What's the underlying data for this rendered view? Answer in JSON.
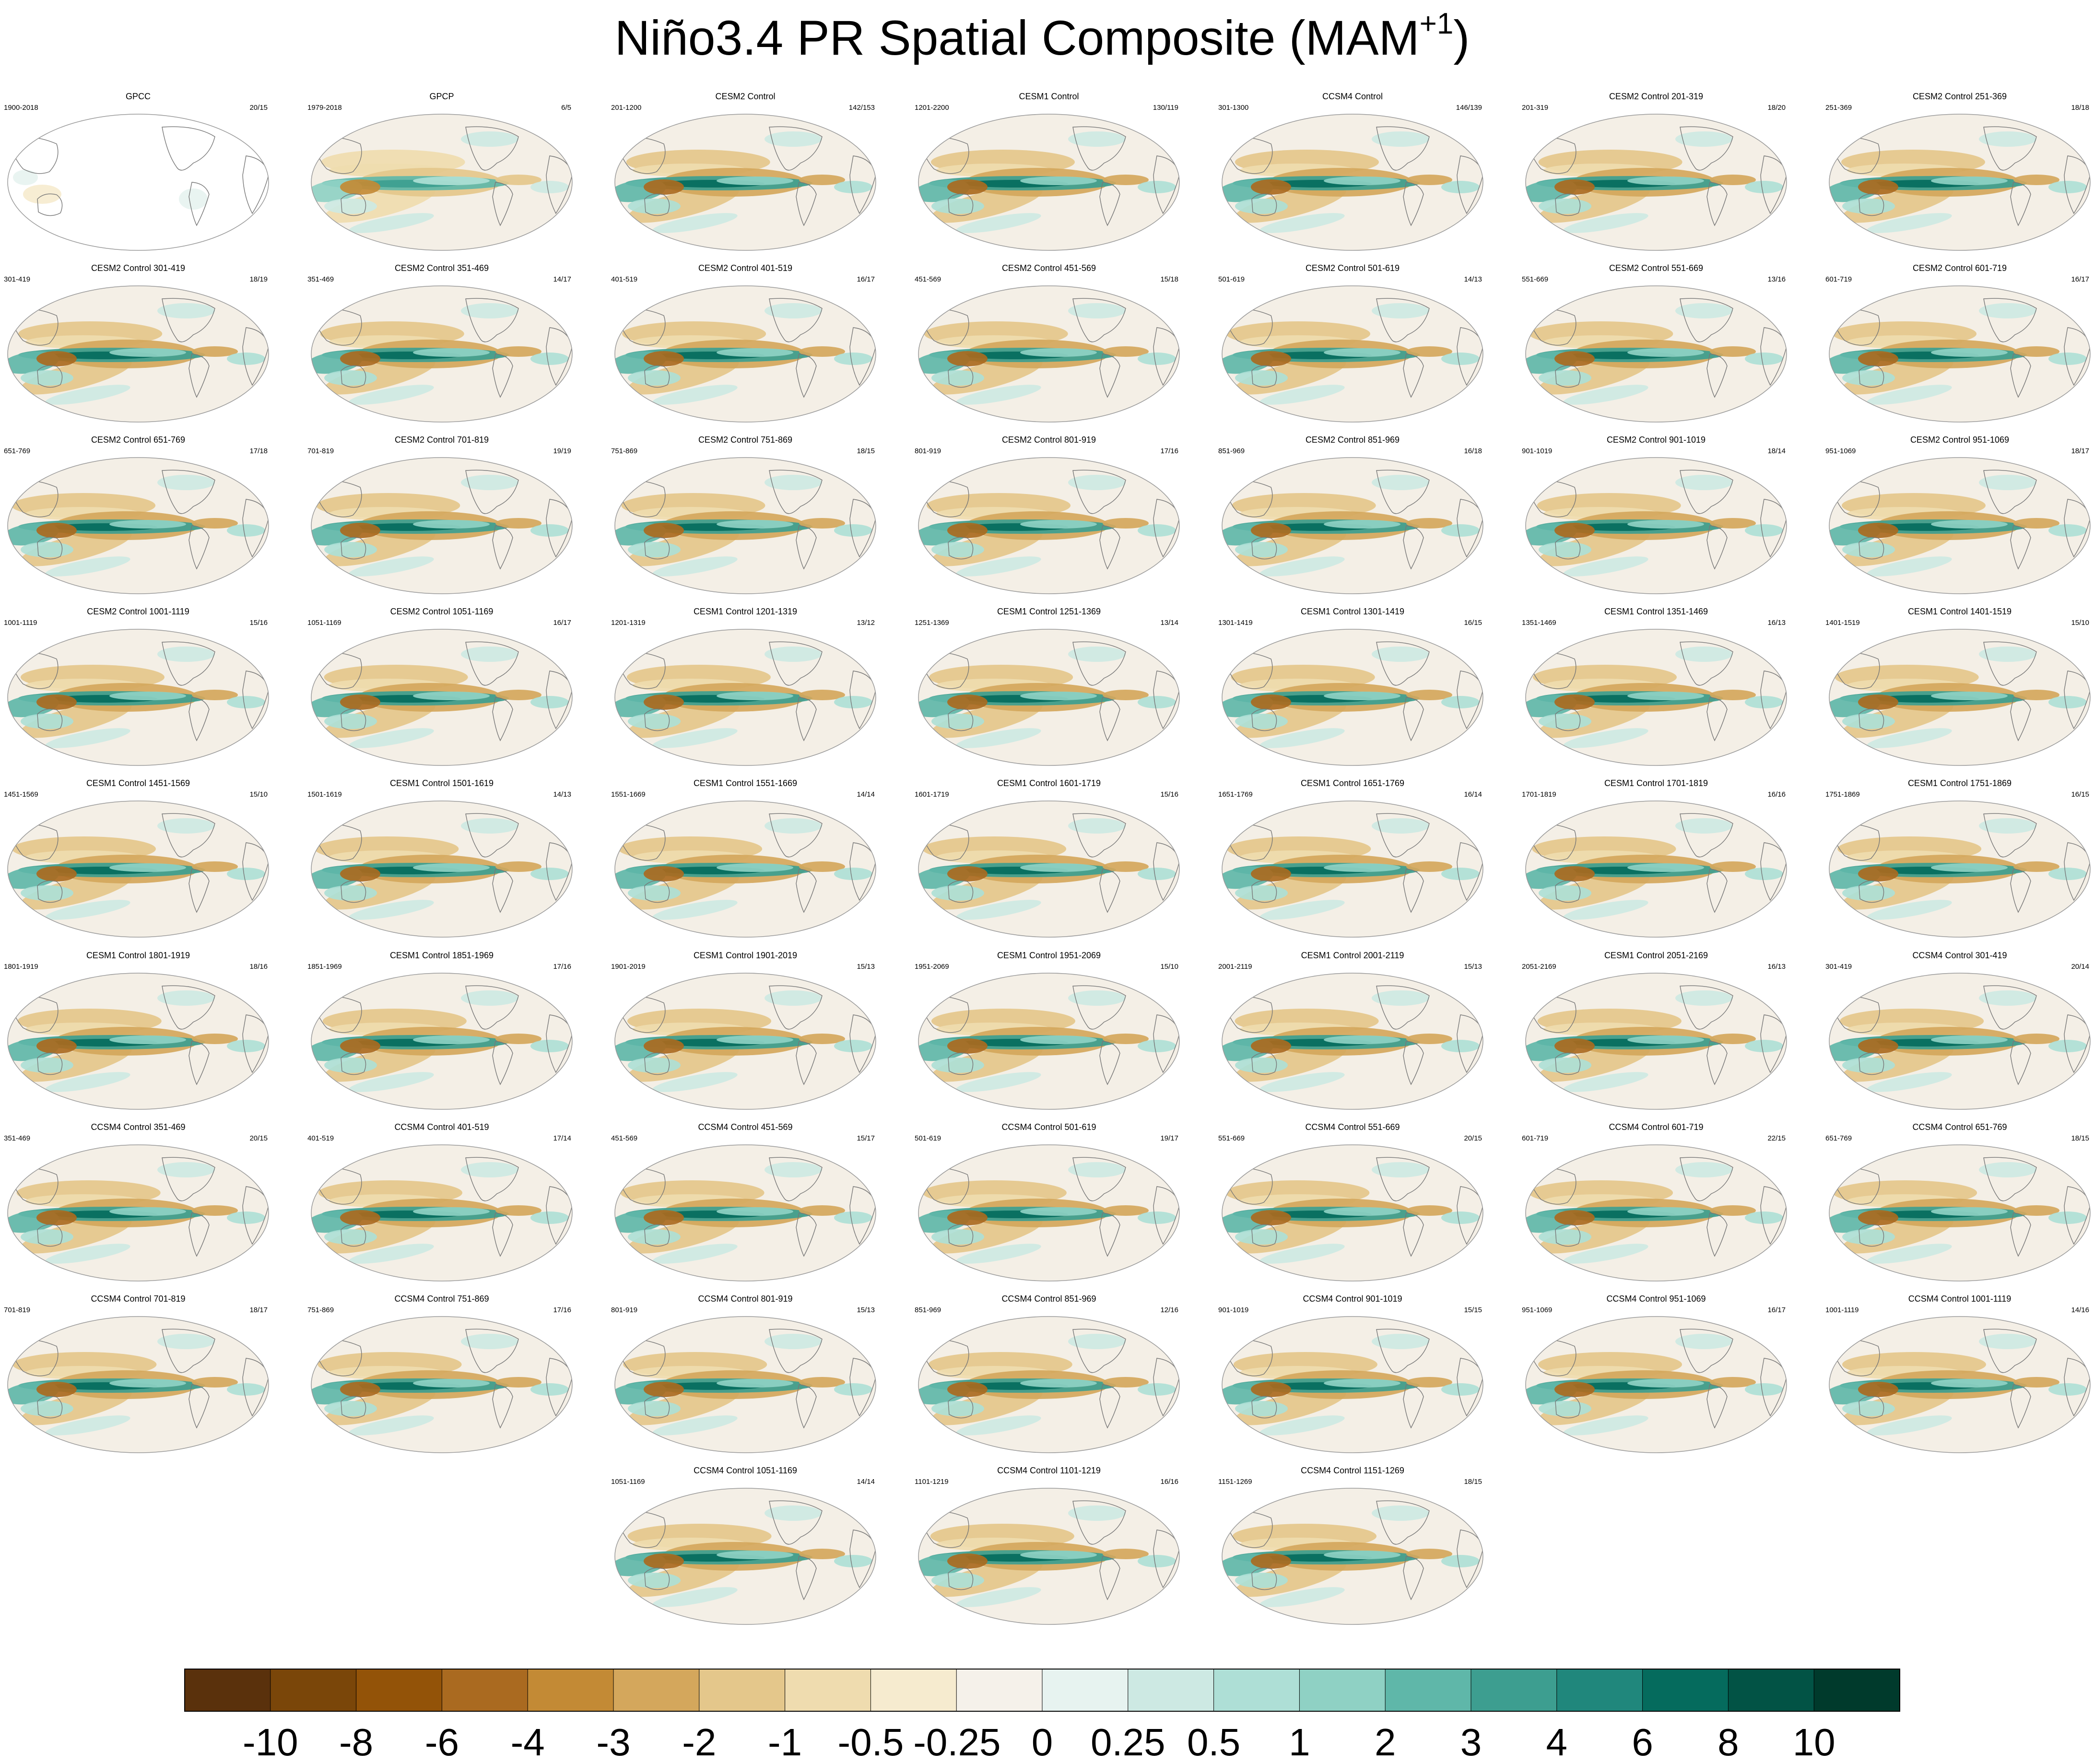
{
  "figure": {
    "title_main": "Niño3.4 PR Spatial Composite (MAM",
    "title_sup": "+1",
    "title_end": ")"
  },
  "chart_data": {
    "type": "heatmap",
    "title": "Niño3.4 PR Spatial Composite (MAM+1)",
    "colorbar": {
      "levels": [
        "-10",
        "-8",
        "-6",
        "-4",
        "-3",
        "-2",
        "-1",
        "-0.5",
        "-0.25",
        "0",
        "0.25",
        "0.5",
        "1",
        "2",
        "3",
        "4",
        "6",
        "8",
        "10"
      ],
      "colors": [
        "#5a310c",
        "#7a4609",
        "#935308",
        "#aa6a20",
        "#c38a35",
        "#d4a75c",
        "#e4c78b",
        "#efdcaf",
        "#f6ebcf",
        "#f5f1ea",
        "#e7f3f0",
        "#cde9e3",
        "#aedfd6",
        "#8fd1c4",
        "#5fb7a9",
        "#3d9e90",
        "#20877c",
        "#056b5d",
        "#025345",
        "#003a2c"
      ]
    },
    "panels": [
      {
        "title": "GPCC",
        "years": "1900-2018",
        "counts": "20/15"
      },
      {
        "title": "GPCP",
        "years": "1979-2018",
        "counts": "6/5"
      },
      {
        "title": "CESM2 Control",
        "years": "201-1200",
        "counts": "142/153"
      },
      {
        "title": "CESM1 Control",
        "years": "1201-2200",
        "counts": "130/119"
      },
      {
        "title": "CCSM4 Control",
        "years": "301-1300",
        "counts": "146/139"
      },
      {
        "title": "CESM2 Control 201-319",
        "years": "201-319",
        "counts": "18/20"
      },
      {
        "title": "CESM2 Control 251-369",
        "years": "251-369",
        "counts": "18/18"
      },
      {
        "title": "CESM2 Control 301-419",
        "years": "301-419",
        "counts": "18/19"
      },
      {
        "title": "CESM2 Control 351-469",
        "years": "351-469",
        "counts": "14/17"
      },
      {
        "title": "CESM2 Control 401-519",
        "years": "401-519",
        "counts": "16/17"
      },
      {
        "title": "CESM2 Control 451-569",
        "years": "451-569",
        "counts": "15/18"
      },
      {
        "title": "CESM2 Control 501-619",
        "years": "501-619",
        "counts": "14/13"
      },
      {
        "title": "CESM2 Control 551-669",
        "years": "551-669",
        "counts": "13/16"
      },
      {
        "title": "CESM2 Control 601-719",
        "years": "601-719",
        "counts": "16/17"
      },
      {
        "title": "CESM2 Control 651-769",
        "years": "651-769",
        "counts": "17/18"
      },
      {
        "title": "CESM2 Control 701-819",
        "years": "701-819",
        "counts": "19/19"
      },
      {
        "title": "CESM2 Control 751-869",
        "years": "751-869",
        "counts": "18/15"
      },
      {
        "title": "CESM2 Control 801-919",
        "years": "801-919",
        "counts": "17/16"
      },
      {
        "title": "CESM2 Control 851-969",
        "years": "851-969",
        "counts": "16/18"
      },
      {
        "title": "CESM2 Control 901-1019",
        "years": "901-1019",
        "counts": "18/14"
      },
      {
        "title": "CESM2 Control 951-1069",
        "years": "951-1069",
        "counts": "18/17"
      },
      {
        "title": "CESM2 Control 1001-1119",
        "years": "1001-1119",
        "counts": "15/16"
      },
      {
        "title": "CESM2 Control 1051-1169",
        "years": "1051-1169",
        "counts": "16/17"
      },
      {
        "title": "CESM1 Control 1201-1319",
        "years": "1201-1319",
        "counts": "13/12"
      },
      {
        "title": "CESM1 Control 1251-1369",
        "years": "1251-1369",
        "counts": "13/14"
      },
      {
        "title": "CESM1 Control 1301-1419",
        "years": "1301-1419",
        "counts": "16/15"
      },
      {
        "title": "CESM1 Control 1351-1469",
        "years": "1351-1469",
        "counts": "16/13"
      },
      {
        "title": "CESM1 Control 1401-1519",
        "years": "1401-1519",
        "counts": "15/10"
      },
      {
        "title": "CESM1 Control 1451-1569",
        "years": "1451-1569",
        "counts": "15/10"
      },
      {
        "title": "CESM1 Control 1501-1619",
        "years": "1501-1619",
        "counts": "14/13"
      },
      {
        "title": "CESM1 Control 1551-1669",
        "years": "1551-1669",
        "counts": "14/14"
      },
      {
        "title": "CESM1 Control 1601-1719",
        "years": "1601-1719",
        "counts": "15/16"
      },
      {
        "title": "CESM1 Control 1651-1769",
        "years": "1651-1769",
        "counts": "16/14"
      },
      {
        "title": "CESM1 Control 1701-1819",
        "years": "1701-1819",
        "counts": "16/16"
      },
      {
        "title": "CESM1 Control 1751-1869",
        "years": "1751-1869",
        "counts": "16/15"
      },
      {
        "title": "CESM1 Control 1801-1919",
        "years": "1801-1919",
        "counts": "18/16"
      },
      {
        "title": "CESM1 Control 1851-1969",
        "years": "1851-1969",
        "counts": "17/16"
      },
      {
        "title": "CESM1 Control 1901-2019",
        "years": "1901-2019",
        "counts": "15/13"
      },
      {
        "title": "CESM1 Control 1951-2069",
        "years": "1951-2069",
        "counts": "15/10"
      },
      {
        "title": "CESM1 Control 2001-2119",
        "years": "2001-2119",
        "counts": "15/13"
      },
      {
        "title": "CESM1 Control 2051-2169",
        "years": "2051-2169",
        "counts": "16/13"
      },
      {
        "title": "CCSM4 Control 301-419",
        "years": "301-419",
        "counts": "20/14"
      },
      {
        "title": "CCSM4 Control 351-469",
        "years": "351-469",
        "counts": "20/15"
      },
      {
        "title": "CCSM4 Control 401-519",
        "years": "401-519",
        "counts": "17/14"
      },
      {
        "title": "CCSM4 Control 451-569",
        "years": "451-569",
        "counts": "15/17"
      },
      {
        "title": "CCSM4 Control 501-619",
        "years": "501-619",
        "counts": "19/17"
      },
      {
        "title": "CCSM4 Control 551-669",
        "years": "551-669",
        "counts": "20/15"
      },
      {
        "title": "CCSM4 Control 601-719",
        "years": "601-719",
        "counts": "22/15"
      },
      {
        "title": "CCSM4 Control 651-769",
        "years": "651-769",
        "counts": "18/15"
      },
      {
        "title": "CCSM4 Control 701-819",
        "years": "701-819",
        "counts": "18/17"
      },
      {
        "title": "CCSM4 Control 751-869",
        "years": "751-869",
        "counts": "17/16"
      },
      {
        "title": "CCSM4 Control 801-919",
        "years": "801-919",
        "counts": "15/13"
      },
      {
        "title": "CCSM4 Control 851-969",
        "years": "851-969",
        "counts": "12/16"
      },
      {
        "title": "CCSM4 Control 901-1019",
        "years": "901-1019",
        "counts": "15/15"
      },
      {
        "title": "CCSM4 Control 951-1069",
        "years": "951-1069",
        "counts": "16/17"
      },
      {
        "title": "CCSM4 Control 1001-1119",
        "years": "1001-1119",
        "counts": "14/16"
      },
      {
        "title": "CCSM4 Control 1051-1169",
        "years": "1051-1169",
        "counts": "14/14"
      },
      {
        "title": "CCSM4 Control 1101-1219",
        "years": "1101-1219",
        "counts": "16/16"
      },
      {
        "title": "CCSM4 Control 1151-1269",
        "years": "1151-1269",
        "counts": "18/15"
      }
    ]
  }
}
